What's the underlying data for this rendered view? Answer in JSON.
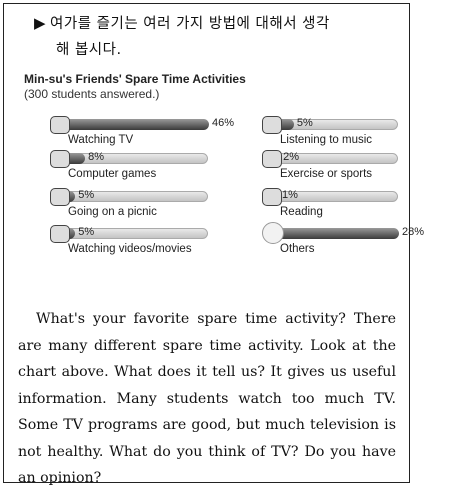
{
  "instruction": {
    "marker": "▶",
    "line1": "여가를 즐기는 여러 가지 방법에 대해서 생각",
    "line2": "해 봅시다."
  },
  "chart_data": {
    "type": "bar",
    "title": "Min-su's Friends' Spare Time Activities",
    "subtitle": "(300 students answered.)",
    "categories": [
      "Watching TV",
      "Computer games",
      "Going on a picnic",
      "Watching videos/movies",
      "Listening to music",
      "Exercise or sports",
      "Reading",
      "Others"
    ],
    "values": [
      46,
      8,
      5,
      5,
      5,
      2,
      1,
      28
    ],
    "value_labels": [
      "46%",
      "8%",
      "5%",
      "5%",
      "5%",
      "2%",
      "1%",
      "28%"
    ],
    "icons": [
      "tv-icon",
      "computer-icon",
      "picnic-icon",
      "video-icon",
      "music-icon",
      "sports-icon",
      "book-icon",
      "others-icon"
    ],
    "unit": "%"
  },
  "paragraph": "What's your favorite spare time activity? There are many different spare time activity. Look at the chart above. What does it tell us? It gives us useful information. Many students watch too much TV. Some TV programs are good, but much television is not healthy. What do you think of TV? Do you have an opinion?"
}
